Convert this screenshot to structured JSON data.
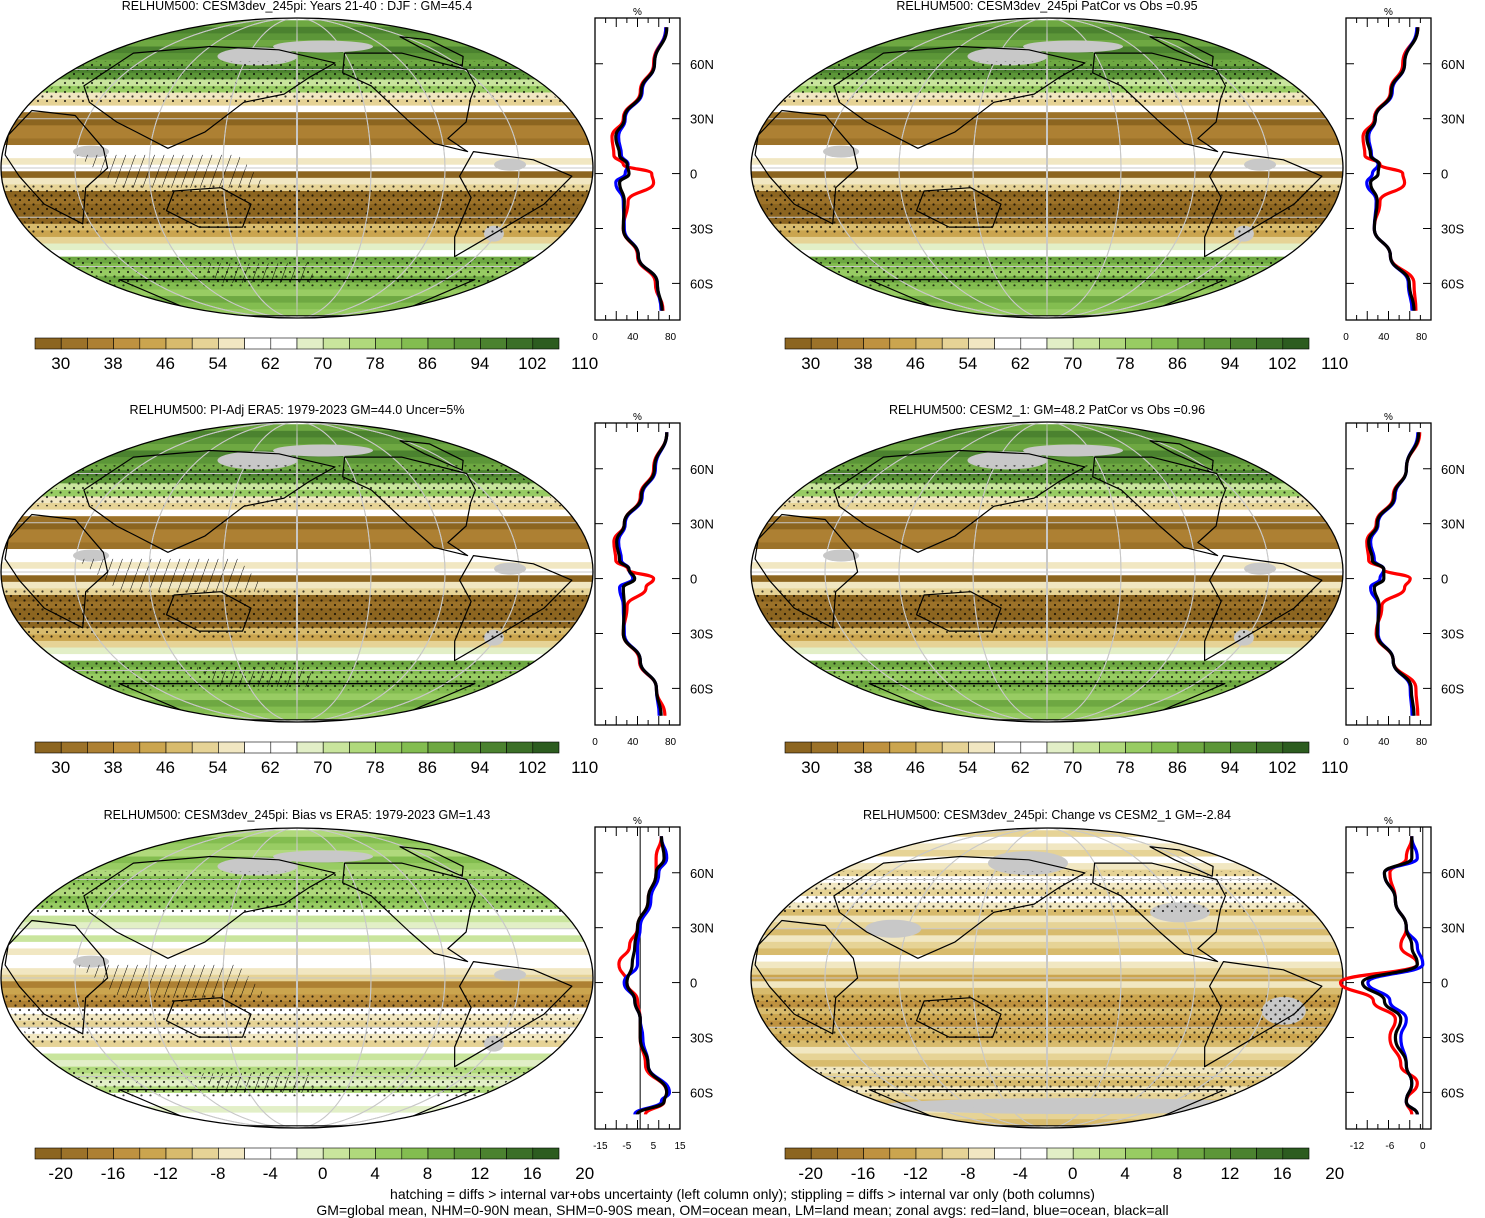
{
  "panels": [
    {
      "title": "RELHUM500: CESM3dev_245pi: Years 21-40 : DJF : GM=45.4",
      "kind": "abs",
      "hatch": true,
      "grey": "orig"
    },
    {
      "title": "RELHUM500: CESM3dev_245pi PatCor vs Obs =0.95",
      "kind": "abs",
      "hatch": false,
      "grey": "orig"
    },
    {
      "title": "RELHUM500: PI-Adj ERA5: 1979-2023 GM=44.0 Uncer=5%",
      "kind": "abs",
      "hatch": true,
      "grey": "obs"
    },
    {
      "title": "RELHUM500: CESM2_1: GM=48.2 PatCor vs Obs =0.96",
      "kind": "abs",
      "hatch": false,
      "grey": "obs"
    },
    {
      "title": "RELHUM500: CESM3dev_245pi: Bias vs ERA5: 1979-2023 GM=1.43",
      "kind": "bias",
      "hatch": true,
      "grey": "bias"
    },
    {
      "title": "RELHUM500: CESM3dev_245pi: Change vs CESM2_1 GM=-2.84",
      "kind": "chg",
      "hatch": false,
      "grey": "chg"
    }
  ],
  "colorbars": {
    "absolute": {
      "labels": [
        "30",
        "38",
        "46",
        "54",
        "62",
        "70",
        "78",
        "86",
        "94",
        "102",
        "110"
      ],
      "colors": [
        "#8c6520",
        "#9c7229",
        "#ad8033",
        "#bf9240",
        "#cba54f",
        "#d8bb6d",
        "#e6d396",
        "#f1e7c2",
        "#ffffff",
        "#ffffff",
        "#e2efc7",
        "#c9e59d",
        "#b0d97c",
        "#98cc63",
        "#83bd50",
        "#6ea842",
        "#5c9638",
        "#4b822f",
        "#3b6f27",
        "#2c5c1f"
      ]
    },
    "difference": {
      "labels": [
        "-20",
        "-16",
        "-12",
        "-8",
        "-4",
        "0",
        "4",
        "8",
        "12",
        "16",
        "20"
      ],
      "colors": [
        "#8c6520",
        "#9c7229",
        "#ad8033",
        "#bf9240",
        "#cba54f",
        "#d8bb6d",
        "#e6d396",
        "#f1e7c2",
        "#ffffff",
        "#ffffff",
        "#e2efc7",
        "#c9e59d",
        "#b0d97c",
        "#98cc63",
        "#83bd50",
        "#6ea842",
        "#5c9638",
        "#4b822f",
        "#3b6f27",
        "#2c5c1f"
      ]
    }
  },
  "zonal_profiles": {
    "unit": "%",
    "lat_ticks": [
      "60N",
      "30N",
      "0",
      "30S",
      "60S"
    ],
    "x_ticks_abs": [
      "0",
      "40",
      "80"
    ],
    "x_ticks_bias": [
      "-15",
      "-5",
      "5",
      "15"
    ],
    "x_ticks_chg": [
      "-12",
      "-6",
      "0"
    ],
    "legend_colors": {
      "land": "#ff0000",
      "ocean": "#0000ff",
      "all": "#000000"
    }
  },
  "chart_data": [
    {
      "type": "heatmap",
      "title": "RELHUM500: CESM3dev_245pi: Years 21-40 : DJF : GM=45.4",
      "zonal_mean": {
        "lat": [
          80,
          60,
          45,
          30,
          20,
          10,
          5,
          0,
          -5,
          -15,
          -30,
          -45,
          -60,
          -75
        ],
        "land": [
          75,
          62,
          48,
          30,
          18,
          20,
          30,
          60,
          62,
          35,
          30,
          45,
          64,
          72
        ],
        "ocean": [
          75,
          63,
          50,
          32,
          25,
          28,
          35,
          32,
          22,
          30,
          31,
          46,
          66,
          70
        ],
        "all": [
          76,
          63,
          49,
          31,
          22,
          26,
          34,
          36,
          26,
          31,
          30,
          46,
          66,
          71
        ]
      }
    },
    {
      "type": "heatmap",
      "title": "RELHUM500: CESM3dev_245pi PatCor vs Obs =0.95",
      "zonal_mean": {
        "lat": [
          80,
          60,
          45,
          30,
          20,
          10,
          5,
          0,
          -5,
          -15,
          -30,
          -45,
          -60,
          -75
        ],
        "land": [
          76,
          60,
          47,
          30,
          18,
          20,
          36,
          60,
          62,
          36,
          30,
          47,
          72,
          74
        ],
        "ocean": [
          75,
          62,
          49,
          31,
          24,
          27,
          34,
          28,
          22,
          32,
          30,
          47,
          66,
          70
        ],
        "all": [
          76,
          62,
          48,
          31,
          22,
          26,
          35,
          34,
          26,
          33,
          30,
          47,
          67,
          72
        ]
      }
    },
    {
      "type": "heatmap",
      "title": "RELHUM500: PI-Adj ERA5: 1979-2023 GM=44.0 Uncer=5%",
      "zonal_mean": {
        "lat": [
          80,
          60,
          45,
          30,
          20,
          10,
          5,
          0,
          -5,
          -15,
          -30,
          -45,
          -60,
          -75
        ],
        "land": [
          76,
          62,
          48,
          31,
          20,
          22,
          35,
          62,
          54,
          34,
          30,
          47,
          65,
          74
        ],
        "ocean": [
          76,
          64,
          50,
          32,
          25,
          28,
          36,
          40,
          26,
          30,
          31,
          48,
          65,
          68
        ],
        "all": [
          76,
          63,
          49,
          31,
          23,
          26,
          36,
          42,
          30,
          31,
          30,
          48,
          65,
          70
        ]
      }
    },
    {
      "type": "heatmap",
      "title": "RELHUM500: CESM2_1: GM=48.2 PatCor vs Obs =0.96",
      "zonal_mean": {
        "lat": [
          80,
          60,
          45,
          30,
          20,
          10,
          5,
          0,
          -5,
          -15,
          -30,
          -45,
          -60,
          -75
        ],
        "land": [
          78,
          64,
          50,
          32,
          22,
          24,
          40,
          68,
          62,
          38,
          32,
          50,
          74,
          76
        ],
        "ocean": [
          76,
          64,
          52,
          34,
          26,
          30,
          40,
          36,
          26,
          34,
          34,
          50,
          68,
          70
        ],
        "all": [
          77,
          64,
          51,
          33,
          24,
          28,
          40,
          40,
          30,
          35,
          33,
          50,
          69,
          72
        ]
      }
    },
    {
      "type": "heatmap",
      "title": "RELHUM500: CESM3dev_245pi: Bias vs ERA5: 1979-2023 GM=1.43",
      "zonal_mean": {
        "lat": [
          80,
          68,
          60,
          45,
          30,
          20,
          10,
          0,
          -10,
          -20,
          -30,
          -45,
          -60,
          -65,
          -72
        ],
        "land": [
          8,
          6,
          6,
          3,
          -1,
          -4,
          -8,
          -5,
          -1,
          0,
          0,
          2,
          10,
          9,
          2
        ],
        "ocean": [
          8,
          10,
          7,
          4,
          0,
          -1,
          -1,
          -6,
          -2,
          0,
          1,
          3,
          11,
          8,
          -2
        ],
        "all": [
          8,
          9,
          6,
          3,
          -1,
          -2,
          -3,
          -5,
          -2,
          0,
          0,
          3,
          10,
          9,
          -1
        ]
      }
    },
    {
      "type": "heatmap",
      "title": "RELHUM500: CESM3dev_245pi: Change vs CESM2_1 GM=-2.84",
      "zonal_mean": {
        "lat": [
          80,
          68,
          60,
          45,
          30,
          20,
          10,
          0,
          -10,
          -20,
          -30,
          -45,
          -55,
          -65,
          -72
        ],
        "land": [
          -2,
          -3,
          -6,
          -5,
          -3,
          -4,
          -1,
          -15,
          -9,
          -5,
          -6,
          -4,
          -1,
          -3,
          -2
        ],
        "ocean": [
          -2,
          -1,
          -7,
          -5,
          -3,
          -1,
          0,
          -10,
          -6,
          -3,
          -4,
          -3,
          -2,
          -3,
          -1
        ],
        "all": [
          -2,
          -2,
          -7,
          -5,
          -3,
          -2,
          -1,
          -11,
          -7,
          -4,
          -5,
          -3,
          -2,
          -3,
          -1
        ]
      }
    }
  ],
  "footer": {
    "line1": "hatching = diffs > internal var+obs uncertainty (left column only); stippling = diffs > internal var only (both columns)",
    "line2": "GM=global mean, NHM=0-90N mean, SHM=0-90S mean, OM=ocean mean, LM=land mean; zonal avgs: red=land, blue=ocean, black=all"
  }
}
